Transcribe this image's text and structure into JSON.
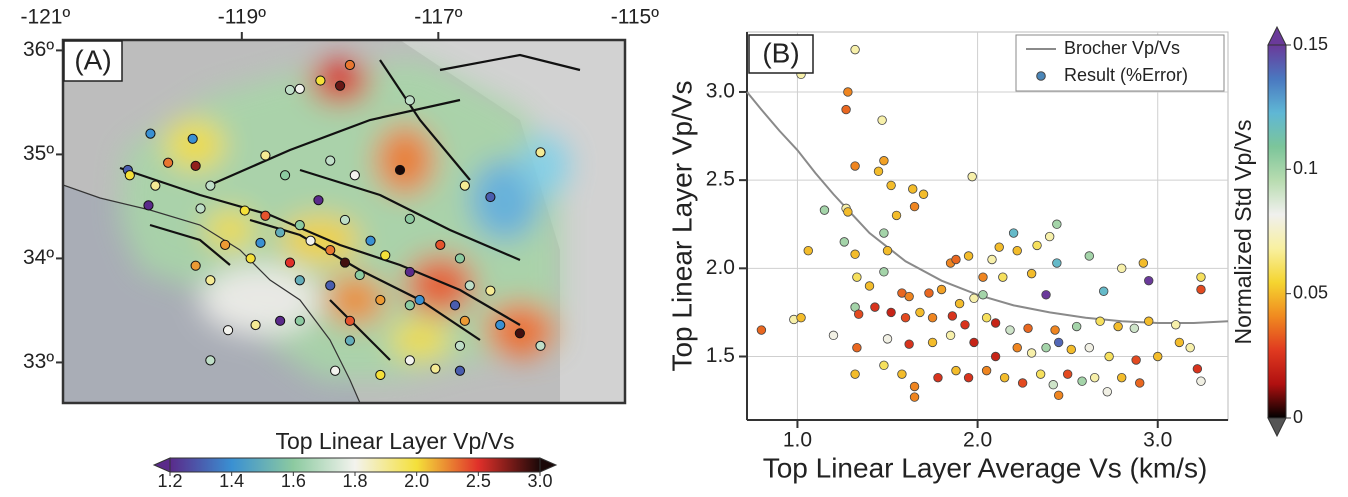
{
  "chart_data": [
    {
      "type": "map",
      "label": "(A)",
      "xlim": [
        -120.82,
        -115.1
      ],
      "ylim": [
        32.61,
        36.1
      ],
      "xticks": [
        {
          "value": -121,
          "label": "-121º"
        },
        {
          "value": -119,
          "label": "-119º"
        },
        {
          "value": -117,
          "label": "-117º"
        },
        {
          "value": -115,
          "label": "-115º"
        }
      ],
      "yticks": [
        {
          "value": 36,
          "label": "36º"
        },
        {
          "value": 35,
          "label": "35º"
        },
        {
          "value": 34,
          "label": "34º"
        },
        {
          "value": 33,
          "label": "33º"
        }
      ],
      "points": {
        "lon": [
          -118.2,
          -118.41,
          -118.51,
          -118.0,
          -117.9,
          -117.29,
          -119.93,
          -119.75,
          -119.47,
          -120.16,
          -119.5,
          -120.14,
          -119.32,
          -119.88,
          -118.76,
          -118.56,
          -118.1,
          -117.85,
          -117.39,
          -115.96,
          -116.73,
          -116.47,
          -119.95,
          -119.42,
          -118.97,
          -118.22,
          -118.76,
          -118.41,
          -117.95,
          -117.29,
          -118.61,
          -119.17,
          -118.81,
          -118.3,
          -118.1,
          -117.69,
          -117.54,
          -116.98,
          -119.47,
          -118.91,
          -118.51,
          -117.95,
          -117.8,
          -117.29,
          -116.78,
          -116.68,
          -119.32,
          -118.41,
          -118.1,
          -117.59,
          -117.19,
          -116.83,
          -116.47,
          -118.41,
          -117.9,
          -117.29,
          -116.73,
          -118.61,
          -116.37,
          -116.17,
          -117.9,
          -116.78,
          -117.29,
          -117.03,
          -117.59,
          -118.05,
          -115.96,
          -116.78,
          -119.14,
          -118.86,
          -119.32
        ],
        "lat": [
          35.71,
          35.63,
          35.62,
          35.66,
          35.86,
          35.52,
          35.2,
          34.92,
          34.89,
          34.85,
          35.15,
          34.8,
          34.7,
          34.7,
          34.99,
          34.8,
          34.94,
          34.8,
          34.85,
          35.02,
          34.7,
          34.59,
          34.51,
          34.48,
          34.46,
          34.56,
          34.41,
          34.32,
          34.37,
          34.38,
          34.25,
          34.13,
          34.15,
          34.17,
          34.08,
          34.17,
          34.03,
          34.13,
          33.93,
          34.0,
          33.96,
          33.96,
          33.84,
          33.87,
          34.0,
          33.74,
          33.79,
          33.79,
          33.74,
          33.6,
          33.6,
          33.55,
          33.69,
          33.4,
          33.4,
          33.55,
          33.4,
          33.4,
          33.36,
          33.28,
          33.21,
          33.16,
          33.02,
          32.94,
          32.88,
          32.92,
          33.16,
          32.92,
          33.31,
          33.36,
          33.02
        ],
        "values": [
          2.0,
          1.8,
          1.7,
          2.8,
          2.3,
          1.7,
          1.4,
          2.3,
          2.7,
          1.3,
          1.4,
          2.0,
          1.7,
          1.9,
          1.9,
          1.6,
          1.7,
          1.8,
          3.0,
          1.9,
          1.9,
          1.3,
          1.2,
          1.7,
          2.0,
          1.2,
          2.4,
          1.6,
          1.7,
          1.6,
          1.5,
          2.2,
          1.4,
          1.8,
          2.3,
          1.4,
          2.0,
          2.4,
          2.2,
          2.0,
          2.5,
          2.9,
          1.6,
          1.2,
          1.6,
          1.7,
          1.9,
          1.5,
          1.3,
          2.2,
          1.4,
          1.3,
          1.9,
          1.6,
          2.4,
          1.6,
          2.2,
          1.2,
          1.4,
          2.9,
          1.5,
          1.7,
          1.8,
          1.9,
          2.0,
          1.8,
          1.7,
          1.3,
          1.8,
          1.9,
          1.7
        ]
      },
      "colorbar": {
        "title": "Top Linear Layer Vp/Vs",
        "ticks": [
          1.2,
          1.4,
          1.6,
          1.8,
          {
            "value": 2,
            "label": "2.0"
          },
          2.5,
          {
            "value": 3,
            "label": "3.0"
          }
        ],
        "colormap": [
          "#5a2a8a",
          "#3a90d2",
          "#8ccaa0",
          "#f3f3ee",
          "#f4e03a",
          "#e0302a",
          "#1a0808"
        ]
      }
    },
    {
      "type": "scatter",
      "label": "(B)",
      "xlabel": "Top Linear Layer Average Vs (km/s)",
      "ylabel": "Top Linear Layer Vp/Vs",
      "xlim": [
        0.72,
        3.39
      ],
      "ylim": [
        1.14,
        3.34
      ],
      "xticks": [
        {
          "value": 1,
          "label": "1.0"
        },
        {
          "value": 2,
          "label": "2.0"
        },
        {
          "value": 3,
          "label": "3.0"
        }
      ],
      "yticks": [
        1.5,
        {
          "value": 2,
          "label": "2.0"
        },
        2.5,
        {
          "value": 3,
          "label": "3.0"
        }
      ],
      "grid": true,
      "legend": "upper right",
      "series": [
        {
          "name": "Brocher Vp/Vs",
          "type": "line",
          "color": "#8a8a8a",
          "x": [
            0.72,
            0.8,
            0.9,
            1.0,
            1.1,
            1.2,
            1.3,
            1.4,
            1.5,
            1.6,
            1.8,
            2.0,
            2.2,
            2.4,
            2.6,
            2.8,
            3.0,
            3.2,
            3.39
          ],
          "values": [
            3.0,
            2.9,
            2.78,
            2.67,
            2.54,
            2.42,
            2.31,
            2.2,
            2.12,
            2.04,
            1.93,
            1.85,
            1.79,
            1.75,
            1.72,
            1.7,
            1.69,
            1.69,
            1.7
          ]
        },
        {
          "name": "Result (%Error)",
          "type": "scatter",
          "color": "#4a86b8",
          "x": [
            1.02,
            1.32,
            1.28,
            1.27,
            1.47,
            1.32,
            1.45,
            1.48,
            1.27,
            1.28,
            1.15,
            1.52,
            1.64,
            1.7,
            1.65,
            1.55,
            1.97,
            2.2,
            2.44,
            2.4,
            1.26,
            1.06,
            1.32,
            1.5,
            1.48,
            1.85,
            1.88,
            1.95,
            2.08,
            2.12,
            2.22,
            2.33,
            2.44,
            2.03,
            2.14,
            2.3,
            2.62,
            2.8,
            2.92,
            2.03,
            2.38,
            2.7,
            2.95,
            3.24,
            3.24,
            1.33,
            1.4,
            1.48,
            1.58,
            1.62,
            1.73,
            1.8,
            1.9,
            1.98,
            0.8,
            0.98,
            1.02,
            1.32,
            1.34,
            1.43,
            1.52,
            1.6,
            1.68,
            1.75,
            1.86,
            1.93,
            2.05,
            2.1,
            2.18,
            2.28,
            2.43,
            2.55,
            2.68,
            2.78,
            2.87,
            2.95,
            3.1,
            1.2,
            1.33,
            1.5,
            1.62,
            1.75,
            1.85,
            1.98,
            2.1,
            2.22,
            2.3,
            2.38,
            2.45,
            2.52,
            2.62,
            2.73,
            2.88,
            3.0,
            3.12,
            3.18,
            3.22,
            1.32,
            1.48,
            1.58,
            1.65,
            1.78,
            1.88,
            1.95,
            2.05,
            2.15,
            2.25,
            2.35,
            2.42,
            2.5,
            2.58,
            2.65,
            2.72,
            2.8,
            2.9,
            1.65,
            2.45,
            3.24
          ],
          "values": [
            3.1,
            3.24,
            3.0,
            2.9,
            2.84,
            2.58,
            2.55,
            2.61,
            2.34,
            2.32,
            2.33,
            2.47,
            2.45,
            2.42,
            2.35,
            2.3,
            2.52,
            2.2,
            2.25,
            2.18,
            2.15,
            2.1,
            2.08,
            2.1,
            2.2,
            2.03,
            2.05,
            2.07,
            2.05,
            2.12,
            2.1,
            2.13,
            2.03,
            1.95,
            1.95,
            1.97,
            2.07,
            2.0,
            2.03,
            1.85,
            1.85,
            1.87,
            1.93,
            1.95,
            1.88,
            1.95,
            1.9,
            1.98,
            1.86,
            1.84,
            1.86,
            1.88,
            1.8,
            1.83,
            1.65,
            1.71,
            1.72,
            1.78,
            1.74,
            1.78,
            1.75,
            1.72,
            1.75,
            1.72,
            1.73,
            1.68,
            1.72,
            1.69,
            1.65,
            1.66,
            1.65,
            1.67,
            1.7,
            1.67,
            1.66,
            1.7,
            1.68,
            1.62,
            1.55,
            1.6,
            1.57,
            1.58,
            1.62,
            1.58,
            1.5,
            1.55,
            1.52,
            1.55,
            1.58,
            1.54,
            1.55,
            1.5,
            1.48,
            1.5,
            1.58,
            1.55,
            1.43,
            1.4,
            1.45,
            1.4,
            1.33,
            1.38,
            1.42,
            1.38,
            1.42,
            1.38,
            1.35,
            1.4,
            1.34,
            1.4,
            1.36,
            1.38,
            1.3,
            1.38,
            1.35,
            1.27,
            1.28,
            1.36
          ],
          "error": [
            0.07,
            0.07,
            0.04,
            0.035,
            0.07,
            0.04,
            0.05,
            0.045,
            0.07,
            0.05,
            0.1,
            0.05,
            0.05,
            0.05,
            0.04,
            0.05,
            0.07,
            0.12,
            0.1,
            0.07,
            0.1,
            0.05,
            0.05,
            0.05,
            0.1,
            0.04,
            0.035,
            0.05,
            0.07,
            0.05,
            0.05,
            0.06,
            0.12,
            0.04,
            0.06,
            0.05,
            0.1,
            0.07,
            0.05,
            0.1,
            0.15,
            0.12,
            0.15,
            0.06,
            0.03,
            0.06,
            0.05,
            0.1,
            0.035,
            0.04,
            0.035,
            0.045,
            0.05,
            0.07,
            0.035,
            0.07,
            0.05,
            0.1,
            0.03,
            0.025,
            0.02,
            0.03,
            0.05,
            0.04,
            0.025,
            0.025,
            0.06,
            0.02,
            0.09,
            0.035,
            0.04,
            0.1,
            0.06,
            0.05,
            0.09,
            0.05,
            0.07,
            0.08,
            0.035,
            0.08,
            0.025,
            0.05,
            0.07,
            0.02,
            0.02,
            0.04,
            0.07,
            0.1,
            0.14,
            0.05,
            0.08,
            0.06,
            0.03,
            0.05,
            0.05,
            0.07,
            0.025,
            0.05,
            0.06,
            0.05,
            0.04,
            0.025,
            0.05,
            0.025,
            0.04,
            0.05,
            0.03,
            0.06,
            0.09,
            0.03,
            0.1,
            0.07,
            0.08,
            0.05,
            0.035,
            0.04,
            0.04,
            0.08
          ]
        }
      ],
      "colorbar": {
        "title": "Normalized Std Vp/Vs",
        "clim": [
          0,
          0.15
        ],
        "ticks": [
          0,
          0.05,
          0.1,
          0.15
        ],
        "colormap": [
          "#000000",
          "#b01010",
          "#e03a20",
          "#f08a20",
          "#f5d530",
          "#f8f0a0",
          "#f0f0ee",
          "#b8dcb0",
          "#7cc59a",
          "#5fb7d5",
          "#4a78c0",
          "#6a3a9a"
        ]
      }
    }
  ]
}
